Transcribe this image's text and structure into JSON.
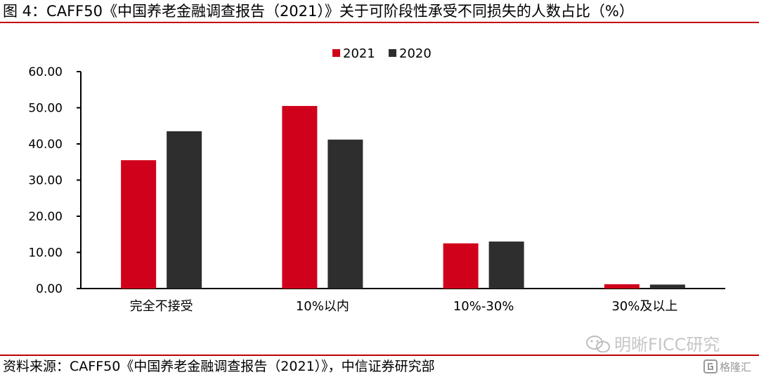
{
  "figure": {
    "title": "图 4：CAFF50《中国养老金融调查报告（2021）》关于可阶段性承受不同损失的人数占比（%）",
    "source": "资料来源：CAFF50《中国养老金融调查报告（2021）》，中信证券研究部"
  },
  "watermark": {
    "text": "明晰FICC研究",
    "icon": "wechat-icon",
    "badge_text": "格隆汇",
    "badge_icon": "gelonghui-logo-icon"
  },
  "colors": {
    "series_2021": "#d0021b",
    "series_2020": "#2e2e2e",
    "rule": "#c00000"
  },
  "chart_data": {
    "type": "bar",
    "title": "",
    "xlabel": "",
    "ylabel": "",
    "categories": [
      "完全不接受",
      "10%以内",
      "10%-30%",
      "30%及以上"
    ],
    "series": [
      {
        "name": "2021",
        "values": [
          35.5,
          50.5,
          12.5,
          1.2
        ]
      },
      {
        "name": "2020",
        "values": [
          43.5,
          41.2,
          13.0,
          1.1
        ]
      }
    ],
    "ylim": [
      0,
      60
    ],
    "yticks": [
      "0.00",
      "10.00",
      "20.00",
      "30.00",
      "40.00",
      "50.00",
      "60.00"
    ],
    "grid": false,
    "legend_position": "top-center"
  }
}
